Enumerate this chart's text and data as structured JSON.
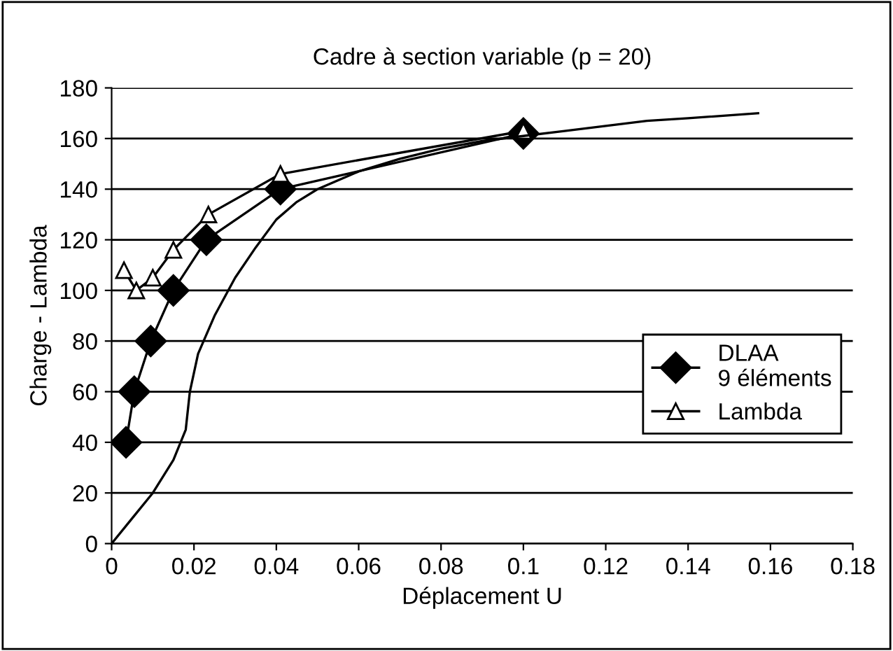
{
  "chart_data": {
    "type": "line",
    "title": "Cadre à section variable (p = 20)",
    "xlabel": "Déplacement U",
    "ylabel": "Charge - Lambda",
    "xlim": [
      0,
      0.18
    ],
    "xticks": [
      0,
      0.02,
      0.04,
      0.06,
      0.08,
      0.1,
      0.12,
      0.14,
      0.16,
      0.18
    ],
    "ylim": [
      0,
      180
    ],
    "yticks": [
      0,
      20,
      40,
      60,
      80,
      100,
      120,
      140,
      160,
      180
    ],
    "grid": "y",
    "legend": "right",
    "line_style": "solid",
    "series": [
      {
        "name": "DLAA\n9 éléments",
        "color": "#000000",
        "marker": "diamond",
        "x": [
          0.0035,
          0.0055,
          0.0095,
          0.015,
          0.023,
          0.041,
          0.1
        ],
        "values": [
          40,
          60,
          80,
          100,
          120,
          140,
          162
        ]
      },
      {
        "name": "Lambda",
        "color": "#000000",
        "marker": "triangle",
        "x": [
          0.003,
          0.006,
          0.01,
          0.015,
          0.0235,
          0.041,
          0.1
        ],
        "values": [
          108,
          100,
          105,
          116,
          130,
          146,
          163
        ]
      },
      {
        "color": "#000000",
        "marker": "none",
        "x": [
          0,
          0.005,
          0.01,
          0.015,
          0.018,
          0.019,
          0.021,
          0.025,
          0.03,
          0.035,
          0.04,
          0.045,
          0.05,
          0.06,
          0.07,
          0.08,
          0.09,
          0.1,
          0.11,
          0.12,
          0.13,
          0.14,
          0.157
        ],
        "values": [
          0,
          10,
          20,
          33,
          45,
          60,
          75,
          90,
          105,
          117,
          128,
          135,
          140,
          147,
          152,
          156,
          159,
          161,
          163,
          165,
          167,
          168,
          170
        ]
      }
    ]
  }
}
